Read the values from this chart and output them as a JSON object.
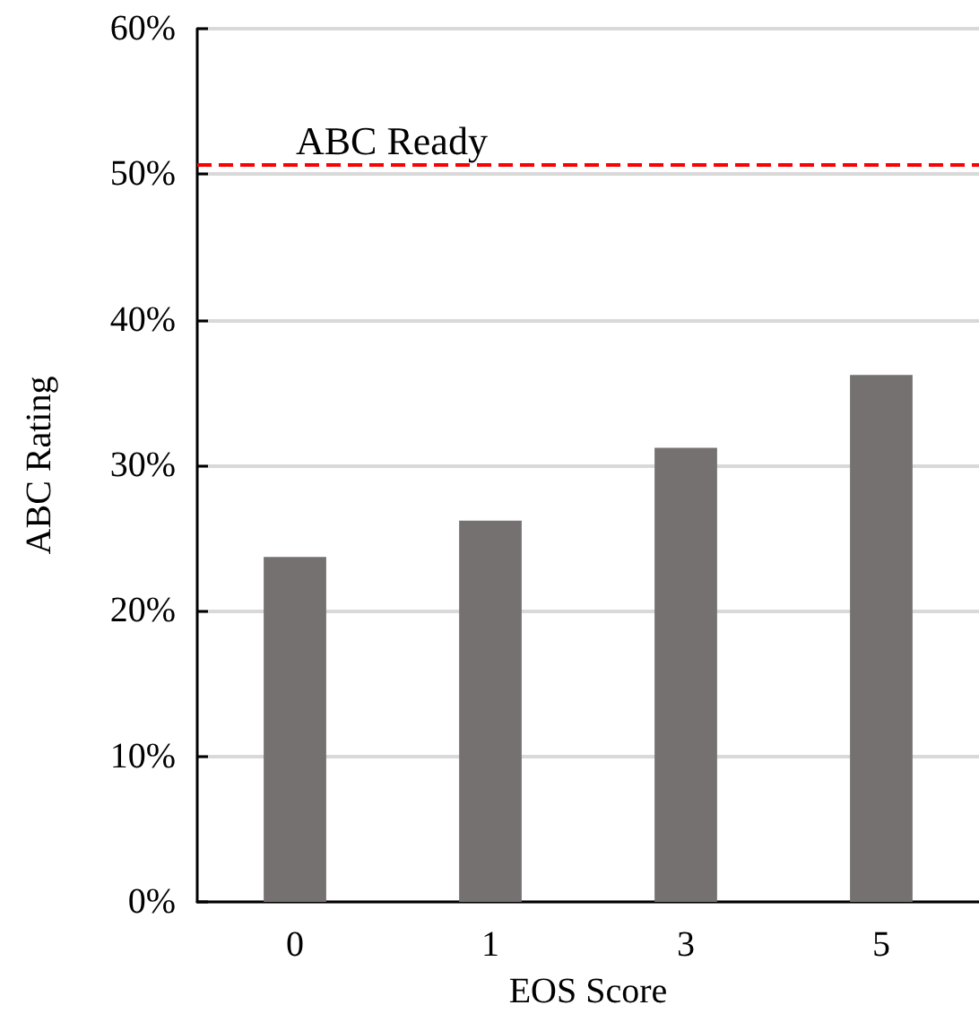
{
  "chart_data": {
    "type": "bar",
    "xlabel": "EOS Score",
    "ylabel": "ABC Rating",
    "categories": [
      "0",
      "1",
      "3",
      "5"
    ],
    "values": [
      23.7,
      26.2,
      31.2,
      36.2
    ],
    "color": "#767171",
    "ylim": [
      0,
      60
    ],
    "yticks": [
      {
        "value": 0,
        "label": "0%"
      },
      {
        "value": 10,
        "label": "10%"
      },
      {
        "value": 20,
        "label": "20%"
      },
      {
        "value": 30,
        "label": "30%"
      },
      {
        "value": 40,
        "label": "40%"
      },
      {
        "value": 50,
        "label": "50%"
      },
      {
        "value": 60,
        "label": "60%"
      }
    ],
    "grid": "y",
    "ref_lines": [
      {
        "axis": "y",
        "value": 50.7,
        "label": "ABC Ready",
        "color": "#ff0000",
        "line_style": "dashed"
      }
    ]
  }
}
